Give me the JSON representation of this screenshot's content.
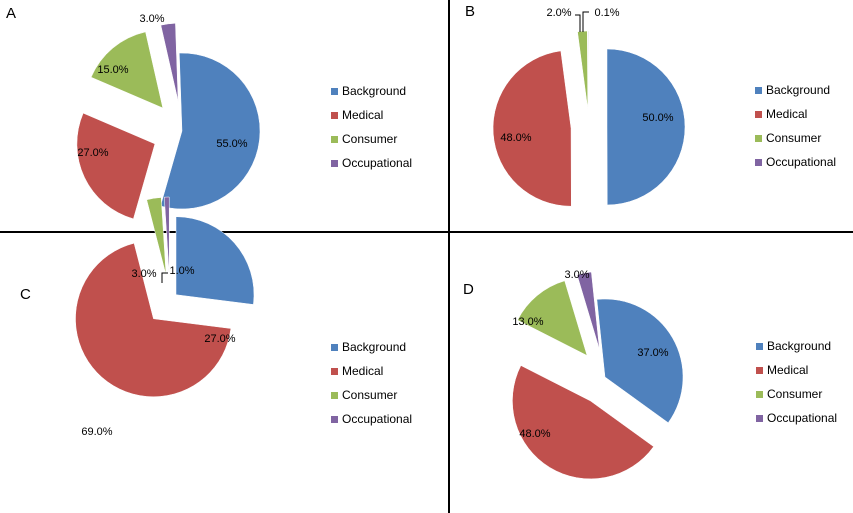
{
  "chart_data": [
    {
      "type": "pie",
      "panel": "A",
      "categories": [
        "Background",
        "Medical",
        "Consumer",
        "Occupational"
      ],
      "values": [
        55.0,
        27.0,
        15.0,
        3.0
      ],
      "labels": [
        "55.0%",
        "27.0%",
        "15.0%",
        "3.0%"
      ],
      "colors": [
        "#4F81BD",
        "#C0504D",
        "#9BBB59",
        "#8064A2"
      ],
      "legend": "right"
    },
    {
      "type": "pie",
      "panel": "B",
      "categories": [
        "Background",
        "Medical",
        "Consumer",
        "Occupational"
      ],
      "values": [
        50.0,
        48.0,
        2.0,
        0.1
      ],
      "labels": [
        "50.0%",
        "48.0%",
        "2.0%",
        "0.1%"
      ],
      "colors": [
        "#4F81BD",
        "#C0504D",
        "#9BBB59",
        "#8064A2"
      ],
      "legend": "right"
    },
    {
      "type": "pie",
      "panel": "C",
      "categories": [
        "Background",
        "Medical",
        "Consumer",
        "Occupational"
      ],
      "values": [
        27.0,
        69.0,
        3.0,
        1.0
      ],
      "labels": [
        "27.0%",
        "69.0%",
        "3.0%",
        "1.0%"
      ],
      "colors": [
        "#4F81BD",
        "#C0504D",
        "#9BBB59",
        "#8064A2"
      ],
      "legend": "right"
    },
    {
      "type": "pie",
      "panel": "D",
      "categories": [
        "Background",
        "Medical",
        "Consumer",
        "Occupational"
      ],
      "values": [
        37.0,
        48.0,
        13.0,
        3.0
      ],
      "labels": [
        "37.0%",
        "48.0%",
        "13.0%",
        "3.0%"
      ],
      "colors": [
        "#4F81BD",
        "#C0504D",
        "#9BBB59",
        "#8064A2"
      ],
      "legend": "right"
    }
  ]
}
